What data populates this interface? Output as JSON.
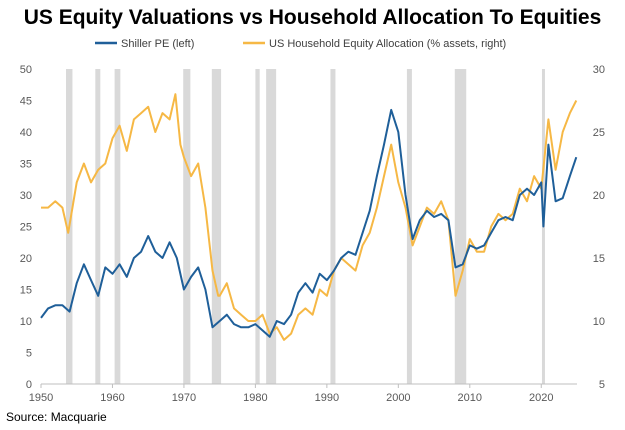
{
  "chart_data": {
    "type": "line",
    "title": "US Equity Valuations vs Household Allocation To Equities",
    "source": "Source: Macquarie",
    "legend_position": "top",
    "x_ticks": [
      1950,
      1960,
      1970,
      1980,
      1990,
      2000,
      2010,
      2020
    ],
    "xlim": [
      1950,
      2025
    ],
    "y_left": {
      "lim": [
        0,
        50
      ],
      "ticks": [
        0,
        5,
        10,
        15,
        20,
        25,
        30,
        35,
        40,
        45,
        50
      ]
    },
    "y_right": {
      "lim": [
        5,
        30
      ],
      "ticks": [
        5,
        10,
        15,
        20,
        25,
        30
      ]
    },
    "grid": false,
    "recessions": [
      [
        1953.5,
        1954.4
      ],
      [
        1957.6,
        1958.3
      ],
      [
        1960.3,
        1961.1
      ],
      [
        1969.9,
        1970.9
      ],
      [
        1973.9,
        1975.2
      ],
      [
        1980.0,
        1980.6
      ],
      [
        1981.5,
        1982.9
      ],
      [
        1990.5,
        1991.2
      ],
      [
        2001.2,
        2001.9
      ],
      [
        2007.9,
        2009.5
      ],
      [
        2020.1,
        2020.4
      ]
    ],
    "series": [
      {
        "name": "Shiller PE (left)",
        "axis": "left",
        "color": "#1f5f99",
        "x": [
          1950,
          1951,
          1952,
          1953,
          1954,
          1955,
          1956,
          1957,
          1958,
          1959,
          1960,
          1961,
          1962,
          1963,
          1964,
          1965,
          1966,
          1967,
          1968,
          1969,
          1970,
          1971,
          1972,
          1973,
          1974,
          1975,
          1976,
          1977,
          1978,
          1979,
          1980,
          1981,
          1982,
          1983,
          1984,
          1985,
          1986,
          1987,
          1988,
          1989,
          1990,
          1991,
          1992,
          1993,
          1994,
          1995,
          1996,
          1997,
          1998,
          1999,
          2000,
          2001,
          2002,
          2003,
          2004,
          2005,
          2006,
          2007,
          2008,
          2009,
          2010,
          2011,
          2012,
          2013,
          2014,
          2015,
          2016,
          2017,
          2018,
          2019,
          2020,
          2020.3,
          2021,
          2022,
          2023,
          2024,
          2024.9
        ],
        "values": [
          10.5,
          12,
          12.5,
          12.5,
          11.5,
          16,
          19,
          16.5,
          14,
          18.5,
          17.5,
          19,
          17,
          20,
          21,
          23.5,
          21,
          20,
          22.5,
          20,
          15,
          17,
          18.5,
          15,
          9,
          10,
          11,
          9.5,
          9,
          9,
          9.5,
          8.5,
          7.5,
          10,
          9.5,
          11,
          14.5,
          16,
          14.5,
          17.5,
          16.5,
          18,
          20,
          21,
          20.5,
          24,
          27.5,
          33,
          38,
          43.5,
          40,
          30,
          23,
          26,
          27.5,
          26.5,
          27,
          26,
          18.5,
          19,
          22,
          21.5,
          22,
          24,
          26,
          26.5,
          26,
          30,
          31,
          30,
          32,
          25,
          38,
          29,
          29.5,
          33,
          36
        ]
      },
      {
        "name": "US Household Equity Allocation (% assets, right)",
        "axis": "right",
        "color": "#f6b845",
        "x": [
          1950,
          1951,
          1952,
          1953,
          1953.8,
          1955,
          1956,
          1957,
          1958,
          1959,
          1960,
          1961,
          1962,
          1963,
          1964,
          1965,
          1966,
          1967,
          1968,
          1968.8,
          1969.5,
          1970,
          1971,
          1972,
          1973,
          1974,
          1974.8,
          1975,
          1976,
          1977,
          1978,
          1979,
          1980,
          1981,
          1982,
          1983,
          1984,
          1985,
          1986,
          1987,
          1988,
          1989,
          1990,
          1991,
          1992,
          1993,
          1994,
          1995,
          1996,
          1997,
          1998,
          1999,
          2000,
          2001,
          2002,
          2003,
          2004,
          2005,
          2006,
          2007,
          2008,
          2009,
          2010,
          2011,
          2012,
          2013,
          2014,
          2015,
          2016,
          2017,
          2018,
          2019,
          2020,
          2021,
          2022,
          2023,
          2024,
          2024.9
        ],
        "values": [
          19,
          19,
          19.5,
          19,
          17,
          21,
          22.5,
          21,
          22,
          22.5,
          24.5,
          25.5,
          23.5,
          26,
          26.5,
          27,
          25,
          26.5,
          26,
          28,
          24,
          23,
          21.5,
          22.5,
          19,
          14,
          12,
          12,
          13,
          11,
          10.5,
          10,
          10,
          10.5,
          9,
          9.5,
          8.5,
          9,
          10.5,
          11,
          10.5,
          12.5,
          12,
          14,
          15,
          14.5,
          14,
          16,
          17,
          19,
          21.5,
          24,
          21,
          19,
          16,
          17.5,
          19,
          18.5,
          19.5,
          18,
          12,
          14,
          16.5,
          15.5,
          15.5,
          17.5,
          18.5,
          18,
          18.5,
          20.5,
          19.5,
          21.5,
          20.5,
          26,
          22,
          25,
          26.5,
          27.5
        ]
      }
    ]
  }
}
